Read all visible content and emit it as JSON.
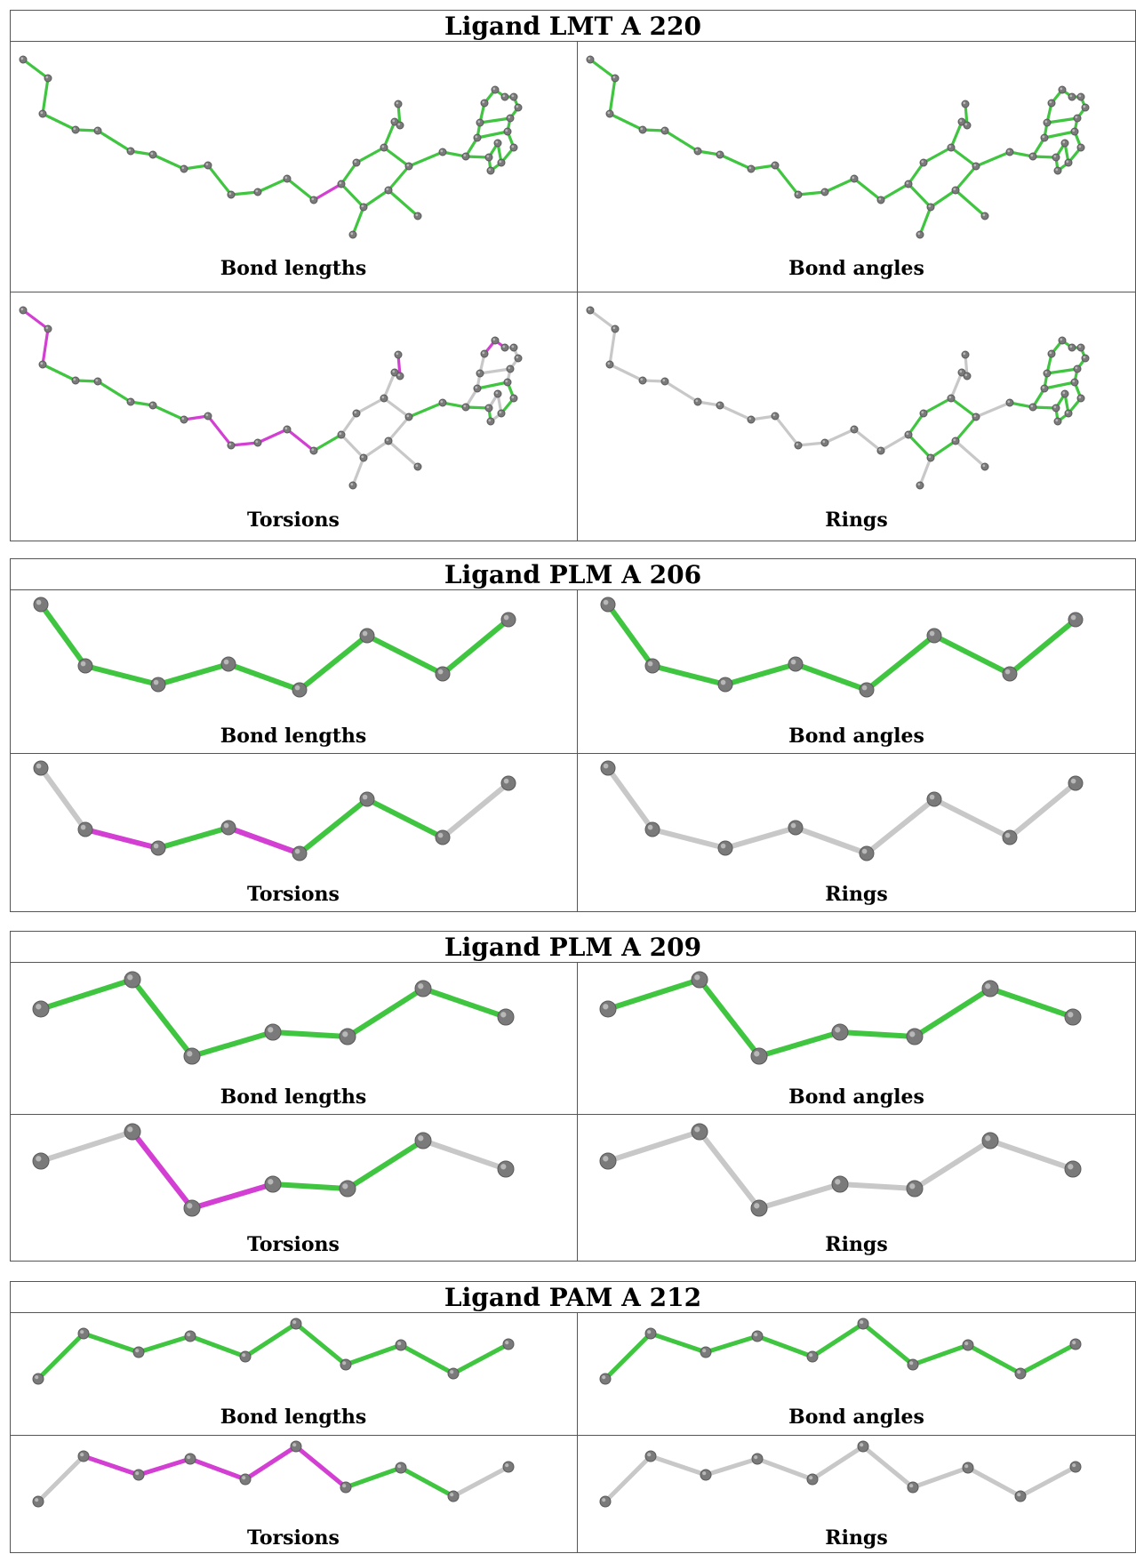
{
  "colors": {
    "pass": "#3fc53f",
    "fail": "#d23fd2",
    "na": "#c8c8c8",
    "atom": "#7a7a7a",
    "border": "#555555"
  },
  "ligands": [
    {
      "title": "Ligand LMT A 220",
      "panels": [
        {
          "label": "Bond lengths",
          "mode": "lengths"
        },
        {
          "label": "Bond angles",
          "mode": "angles"
        },
        {
          "label": "Torsions",
          "mode": "torsions"
        },
        {
          "label": "Rings",
          "mode": "rings"
        }
      ]
    },
    {
      "title": "Ligand PLM A 206",
      "panels": [
        {
          "label": "Bond lengths",
          "mode": "lengths"
        },
        {
          "label": "Bond angles",
          "mode": "angles"
        },
        {
          "label": "Torsions",
          "mode": "torsions"
        },
        {
          "label": "Rings",
          "mode": "rings"
        }
      ]
    },
    {
      "title": "Ligand PLM A 209",
      "panels": [
        {
          "label": "Bond lengths",
          "mode": "lengths"
        },
        {
          "label": "Bond angles",
          "mode": "angles"
        },
        {
          "label": "Torsions",
          "mode": "torsions"
        },
        {
          "label": "Rings",
          "mode": "rings"
        }
      ]
    },
    {
      "title": "Ligand PAM A 212",
      "panels": [
        {
          "label": "Bond lengths",
          "mode": "lengths"
        },
        {
          "label": "Bond angles",
          "mode": "angles"
        },
        {
          "label": "Torsions",
          "mode": "torsions"
        },
        {
          "label": "Rings",
          "mode": "rings"
        }
      ]
    }
  ]
}
